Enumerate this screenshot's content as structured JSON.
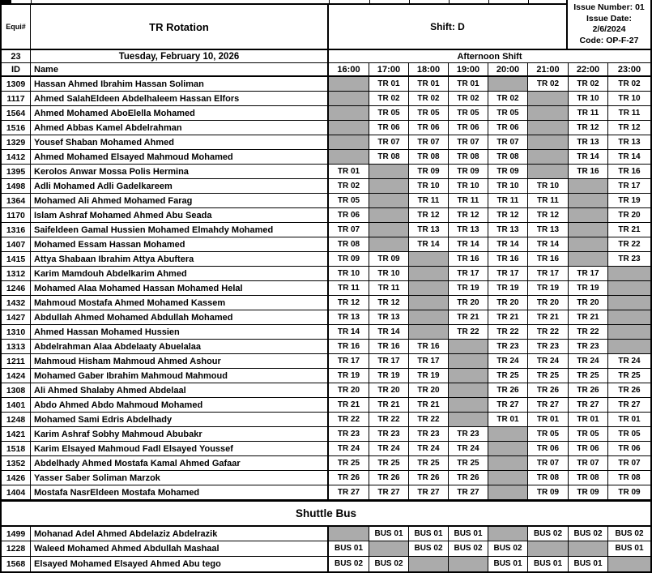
{
  "header": {
    "equip_label": "Equi#",
    "title": "TR Rotation",
    "shift": "Shift: D",
    "issue_number": "Issue Number: 01",
    "issue_date_label": "Issue Date:",
    "issue_date": "2/6/2024",
    "code": "Code: OP-F-27",
    "equip_number": "23",
    "date": "Tuesday, February 10, 2026",
    "shift_name": "Afternoon Shift"
  },
  "columns": {
    "id_label": "ID",
    "name_label": "Name",
    "times": [
      "16:00",
      "17:00",
      "18:00",
      "19:00",
      "20:00",
      "21:00",
      "22:00",
      "23:00"
    ]
  },
  "colors": {
    "break_cell_gray": "#ABABAB",
    "grid_line": "#000000",
    "background": "#FFFFFF"
  },
  "schedule": {
    "rows": [
      {
        "id": "1309",
        "name": "Hassan Ahmed Ibrahim Hassan Soliman",
        "cells": [
          null,
          "TR 01",
          "TR 01",
          "TR 01",
          null,
          "TR 02",
          "TR 02",
          "TR 02"
        ]
      },
      {
        "id": "1117",
        "name": "Ahmed SalahEldeen Abdelhaleem Hassan Elfors",
        "cells": [
          null,
          "TR 02",
          "TR 02",
          "TR 02",
          "TR 02",
          null,
          "TR 10",
          "TR 10"
        ]
      },
      {
        "id": "1564",
        "name": "Ahmed Mohamed AboElella Mohamed",
        "cells": [
          null,
          "TR 05",
          "TR 05",
          "TR 05",
          "TR 05",
          null,
          "TR 11",
          "TR 11"
        ]
      },
      {
        "id": "1516",
        "name": "Ahmed Abbas Kamel Abdelrahman",
        "cells": [
          null,
          "TR 06",
          "TR 06",
          "TR 06",
          "TR 06",
          null,
          "TR 12",
          "TR 12"
        ]
      },
      {
        "id": "1329",
        "name": "Yousef Shaban Mohamed Ahmed",
        "cells": [
          null,
          "TR 07",
          "TR 07",
          "TR 07",
          "TR 07",
          null,
          "TR 13",
          "TR 13"
        ]
      },
      {
        "id": "1412",
        "name": "Ahmed Mohamed Elsayed Mahmoud Mohamed",
        "cells": [
          null,
          "TR 08",
          "TR 08",
          "TR 08",
          "TR 08",
          null,
          "TR 14",
          "TR 14"
        ]
      },
      {
        "id": "1395",
        "name": "Kerolos Anwar Mossa Polis Hermina",
        "cells": [
          "TR 01",
          null,
          "TR 09",
          "TR 09",
          "TR 09",
          null,
          "TR 16",
          "TR 16"
        ]
      },
      {
        "id": "1498",
        "name": "Adli Mohamed Adli Gadelkareem",
        "cells": [
          "TR 02",
          null,
          "TR 10",
          "TR 10",
          "TR 10",
          "TR 10",
          null,
          "TR 17"
        ]
      },
      {
        "id": "1364",
        "name": "Mohamed Ali Ahmed Mohamed Farag",
        "cells": [
          "TR 05",
          null,
          "TR 11",
          "TR 11",
          "TR 11",
          "TR 11",
          null,
          "TR 19"
        ]
      },
      {
        "id": "1170",
        "name": "Islam Ashraf Mohamed Ahmed Abu Seada",
        "cells": [
          "TR 06",
          null,
          "TR 12",
          "TR 12",
          "TR 12",
          "TR 12",
          null,
          "TR 20"
        ]
      },
      {
        "id": "1316",
        "name": "Saifeldeen Gamal Hussien Mohamed Elmahdy Mohamed",
        "cells": [
          "TR 07",
          null,
          "TR 13",
          "TR 13",
          "TR 13",
          "TR 13",
          null,
          "TR 21"
        ]
      },
      {
        "id": "1407",
        "name": "Mohamed Essam Hassan Mohamed",
        "cells": [
          "TR 08",
          null,
          "TR 14",
          "TR 14",
          "TR 14",
          "TR 14",
          null,
          "TR 22"
        ]
      },
      {
        "id": "1415",
        "name": "Attya Shabaan Ibrahim Attya Abuftera",
        "cells": [
          "TR 09",
          "TR 09",
          null,
          "TR 16",
          "TR 16",
          "TR 16",
          null,
          "TR 23"
        ]
      },
      {
        "id": "1312",
        "name": "Karim Mamdouh Abdelkarim Ahmed",
        "cells": [
          "TR 10",
          "TR 10",
          null,
          "TR 17",
          "TR 17",
          "TR 17",
          "TR 17",
          null
        ]
      },
      {
        "id": "1246",
        "name": "Mohamed Alaa Mohamed Hassan Mohamed Helal",
        "cells": [
          "TR 11",
          "TR 11",
          null,
          "TR 19",
          "TR 19",
          "TR 19",
          "TR 19",
          null
        ]
      },
      {
        "id": "1432",
        "name": "Mahmoud Mostafa Ahmed Mohamed Kassem",
        "cells": [
          "TR 12",
          "TR 12",
          null,
          "TR 20",
          "TR 20",
          "TR 20",
          "TR 20",
          null
        ]
      },
      {
        "id": "1427",
        "name": "Abdullah Ahmed Mohamed Abdullah Mohamed",
        "cells": [
          "TR 13",
          "TR 13",
          null,
          "TR 21",
          "TR 21",
          "TR 21",
          "TR 21",
          null
        ]
      },
      {
        "id": "1310",
        "name": "Ahmed Hassan Mohamed Hussien",
        "cells": [
          "TR 14",
          "TR 14",
          null,
          "TR 22",
          "TR 22",
          "TR 22",
          "TR 22",
          null
        ]
      },
      {
        "id": "1313",
        "name": "Abdelrahman Alaa Abdelaaty Abuelalaa",
        "cells": [
          "TR 16",
          "TR 16",
          "TR 16",
          null,
          "TR 23",
          "TR 23",
          "TR 23",
          null
        ]
      },
      {
        "id": "1211",
        "name": "Mahmoud Hisham Mahmoud Ahmed Ashour",
        "cells": [
          "TR 17",
          "TR 17",
          "TR 17",
          null,
          "TR 24",
          "TR 24",
          "TR 24",
          "TR 24"
        ]
      },
      {
        "id": "1424",
        "name": "Mohamed Gaber Ibrahim Mahmoud Mahmoud",
        "cells": [
          "TR 19",
          "TR 19",
          "TR 19",
          null,
          "TR 25",
          "TR 25",
          "TR 25",
          "TR 25"
        ]
      },
      {
        "id": "1308",
        "name": "Ali Ahmed Shalaby Ahmed Abdelaal",
        "cells": [
          "TR 20",
          "TR 20",
          "TR 20",
          null,
          "TR 26",
          "TR 26",
          "TR 26",
          "TR 26"
        ]
      },
      {
        "id": "1401",
        "name": "Abdo Ahmed Abdo Mahmoud Mohamed",
        "cells": [
          "TR 21",
          "TR 21",
          "TR 21",
          null,
          "TR 27",
          "TR 27",
          "TR 27",
          "TR 27"
        ]
      },
      {
        "id": "1248",
        "name": "Mohamed Sami Edris Abdelhady",
        "cells": [
          "TR 22",
          "TR 22",
          "TR 22",
          null,
          "TR 01",
          "TR 01",
          "TR 01",
          "TR 01"
        ]
      },
      {
        "id": "1421",
        "name": "Karim Ashraf Sobhy Mahmoud Abubakr",
        "cells": [
          "TR 23",
          "TR 23",
          "TR 23",
          "TR 23",
          null,
          "TR 05",
          "TR 05",
          "TR 05"
        ]
      },
      {
        "id": "1518",
        "name": "Karim Elsayed Mahmoud Fadl Elsayed Youssef",
        "cells": [
          "TR 24",
          "TR 24",
          "TR 24",
          "TR 24",
          null,
          "TR 06",
          "TR 06",
          "TR 06"
        ]
      },
      {
        "id": "1352",
        "name": "Abdelhady Ahmed Mostafa Kamal Ahmed Gafaar",
        "cells": [
          "TR 25",
          "TR 25",
          "TR 25",
          "TR 25",
          null,
          "TR 07",
          "TR 07",
          "TR 07"
        ]
      },
      {
        "id": "1426",
        "name": "Yasser Saber Soliman Marzok",
        "cells": [
          "TR 26",
          "TR 26",
          "TR 26",
          "TR 26",
          null,
          "TR 08",
          "TR 08",
          "TR 08"
        ]
      },
      {
        "id": "1404",
        "name": "Mostafa NasrEldeen Mostafa Mohamed",
        "cells": [
          "TR 27",
          "TR 27",
          "TR 27",
          "TR 27",
          null,
          "TR 09",
          "TR 09",
          "TR 09"
        ]
      }
    ]
  },
  "shuttle": {
    "title": "Shuttle Bus",
    "rows": [
      {
        "id": "1499",
        "name": "Mohanad Adel Ahmed Abdelaziz Abdelrazik",
        "cells": [
          null,
          "BUS 01",
          "BUS 01",
          "BUS 01",
          null,
          "BUS 02",
          "BUS 02",
          "BUS 02"
        ]
      },
      {
        "id": "1228",
        "name": "Waleed Mohamed Ahmed Abdullah Mashaal",
        "cells": [
          "BUS 01",
          null,
          "BUS 02",
          "BUS 02",
          "BUS 02",
          null,
          null,
          "BUS 01"
        ]
      },
      {
        "id": "1568",
        "name": "Elsayed Mohamed Elsayed Ahmed Abu tego",
        "cells": [
          "BUS 02",
          "BUS 02",
          null,
          null,
          "BUS 01",
          "BUS 01",
          "BUS 01",
          null
        ]
      }
    ]
  }
}
